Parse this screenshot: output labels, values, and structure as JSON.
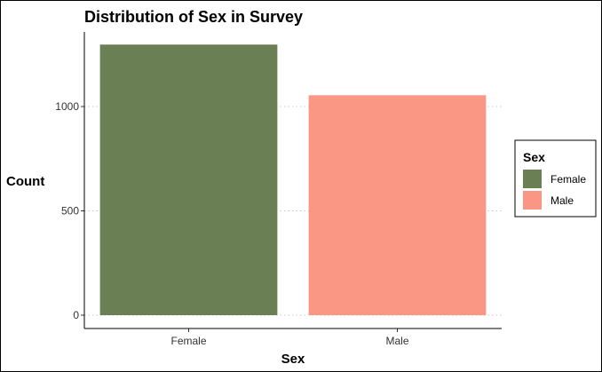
{
  "chart_data": {
    "type": "bar",
    "title": "Distribution of Sex in Survey",
    "xlabel": "Sex",
    "ylabel": "Count",
    "categories": [
      "Female",
      "Male"
    ],
    "values": [
      1297,
      1054
    ],
    "ylim": [
      0,
      1340
    ],
    "yticks": [
      0,
      500,
      1000
    ],
    "ytick_labels": [
      "0",
      "500",
      "1000"
    ],
    "colors": [
      "#6b7f54",
      "#fa9784"
    ],
    "grid": "horizontal dotted",
    "legend": {
      "title": "Sex",
      "position": "right",
      "entries": [
        "Female",
        "Male"
      ]
    }
  }
}
